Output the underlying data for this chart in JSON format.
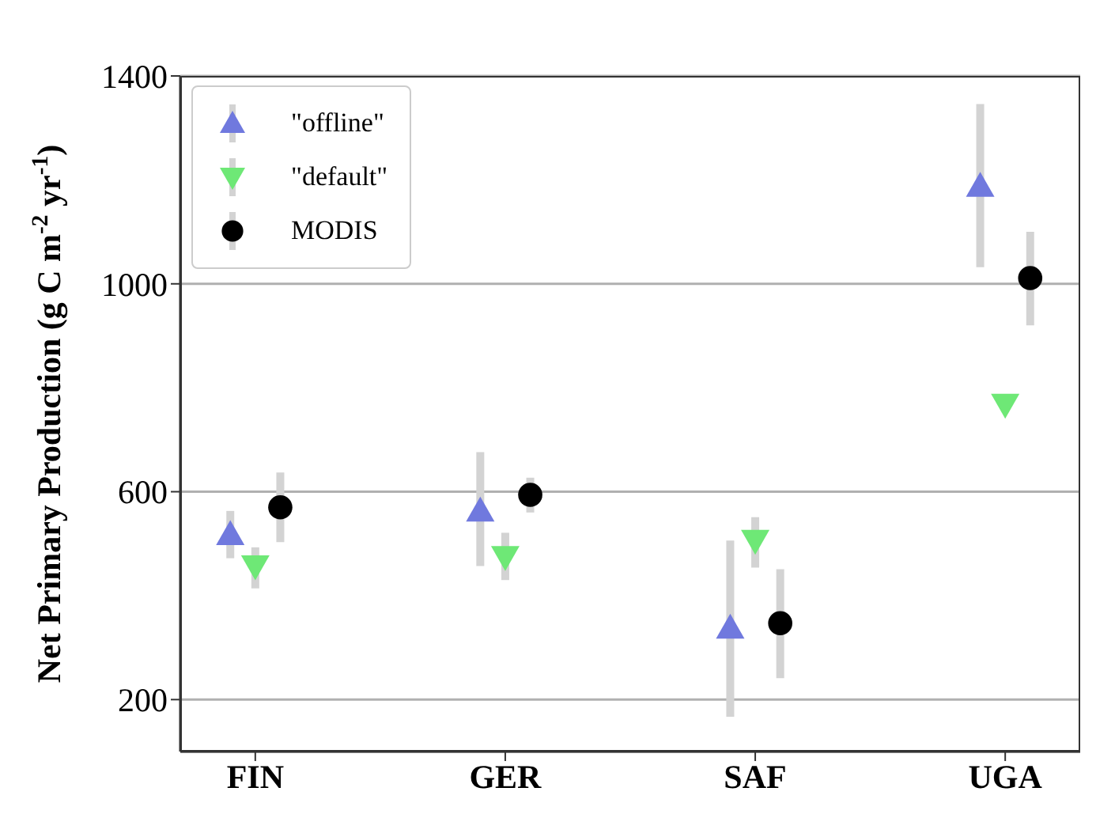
{
  "chart_data": {
    "type": "scatter",
    "ylabel": "Net Primary Production (g C m$^{-2}$ yr$^{-1}$)",
    "categories": [
      "FIN",
      "GER",
      "SAF",
      "UGA"
    ],
    "series": [
      {
        "name": "\"offline\"",
        "color": "#7079de",
        "marker": "triangle",
        "values": [
          518,
          563,
          338,
          1188
        ],
        "errors": [
          [
            472,
            563
          ],
          [
            457,
            676
          ],
          [
            167,
            506
          ],
          [
            1032,
            1346
          ]
        ]
      },
      {
        "name": "\"default\"",
        "color": "#6ee876",
        "marker": "triangle_down",
        "values": [
          457,
          475,
          506,
          768
        ],
        "errors": [
          [
            414,
            493
          ],
          [
            430,
            521
          ],
          [
            454,
            551
          ],
          null
        ]
      },
      {
        "name": "MODIS",
        "color": "#000000",
        "marker": "circle",
        "values": [
          570,
          594,
          347,
          1011
        ],
        "errors": [
          [
            503,
            637
          ],
          [
            560,
            627
          ],
          [
            241,
            451
          ],
          [
            920,
            1100
          ]
        ]
      }
    ],
    "ylim": [
      100,
      1400
    ],
    "yticks": [
      200,
      600,
      1000,
      1400
    ],
    "grid": "y",
    "legend": "top left"
  }
}
